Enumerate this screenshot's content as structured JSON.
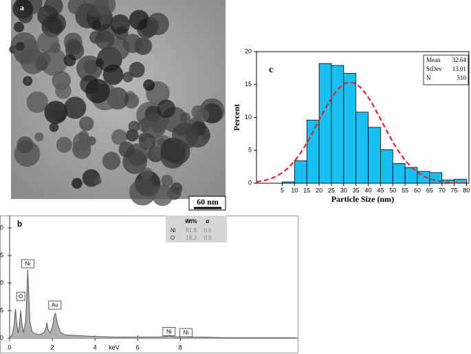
{
  "image": {
    "label": "a",
    "scale_bar": "60 nm"
  },
  "chart_data": [
    {
      "type": "histogram",
      "label": "c",
      "xlabel": "Particle Size (nm)",
      "ylabel": "Percent",
      "bins": [
        5,
        10,
        15,
        20,
        25,
        30,
        35,
        40,
        45,
        50,
        55,
        60,
        65,
        70,
        75,
        80
      ],
      "values": [
        0.2,
        3.4,
        9.6,
        18.2,
        17.9,
        16.7,
        10.8,
        8.5,
        5.1,
        3.0,
        2.4,
        1.8,
        1.6,
        0.5,
        0.6
      ],
      "color": "#19bff0",
      "fit_color": "#e0202a",
      "xlim": [
        -5.5,
        81
      ],
      "ylim": [
        0,
        20
      ],
      "xticks": [
        5,
        10,
        15,
        20,
        25,
        30,
        35,
        40,
        45,
        50,
        55,
        60,
        65,
        70,
        75,
        80
      ],
      "yticks": [
        0,
        5,
        10,
        15,
        20
      ],
      "stats": [
        {
          "label": "Mean",
          "value": 32.64
        },
        {
          "label": "StDev",
          "value": 13.01
        },
        {
          "label": "N",
          "value": 510
        }
      ]
    },
    {
      "type": "line",
      "label": "b",
      "xlabel": "keV",
      "x": [
        0,
        0.1,
        0.2,
        0.25,
        0.28,
        0.32,
        0.4,
        0.45,
        0.52,
        0.58,
        0.65,
        0.75,
        0.85,
        0.95,
        1.05,
        1.2,
        1.4,
        1.6,
        1.7,
        1.75,
        1.8,
        1.9,
        2.0,
        2.1,
        2.15,
        2.25,
        2.4,
        2.6,
        3,
        3.5,
        4,
        5,
        6,
        7,
        7.4,
        7.47,
        7.55,
        8,
        8.26,
        8.35,
        9,
        10,
        11,
        12,
        13.4
      ],
      "series": [
        {
          "color": "#555555",
          "values": [
            0,
            0.05,
            0.2,
            0.45,
            0.53,
            0.3,
            0.1,
            0.2,
            0.5,
            0.25,
            0.1,
            0.3,
            1.24,
            0.3,
            0.12,
            0.08,
            0.06,
            0.1,
            0.18,
            0.28,
            0.15,
            0.1,
            0.2,
            0.43,
            0.45,
            0.25,
            0.1,
            0.06,
            0.05,
            0.04,
            0.03,
            0.02,
            0.02,
            0.02,
            0.03,
            0.06,
            0.03,
            0.02,
            0.03,
            0.02,
            0.02,
            0.01,
            0.01,
            0.01,
            0.01
          ]
        }
      ],
      "xlim": [
        0,
        13.5
      ],
      "ylim": [
        0,
        2.2
      ],
      "xticks": [
        0,
        2,
        4,
        6,
        8
      ],
      "yticks": [
        0,
        {
          "value": 0.5,
          "label": "5"
        },
        {
          "value": 1,
          "label": "0"
        },
        {
          "value": 1.5,
          "label": "5"
        },
        {
          "value": 2,
          "label": "0"
        }
      ],
      "annotations": [
        {
          "text": "O",
          "x": 0.52,
          "y": 0.76
        },
        {
          "text": "Ni",
          "x": 0.85,
          "y": 1.35
        },
        {
          "text": "Au",
          "x": 2.12,
          "y": 0.6
        },
        {
          "text": "Ni",
          "x": 7.47,
          "y": 0.12
        },
        {
          "text": "Ni",
          "x": 8.26,
          "y": 0.1
        }
      ],
      "table": {
        "header": [
          "Wt%",
          "σ"
        ],
        "rows": [
          [
            "Ni",
            81.8,
            0.6
          ],
          [
            "O",
            18.2,
            0.6
          ]
        ]
      }
    }
  ]
}
